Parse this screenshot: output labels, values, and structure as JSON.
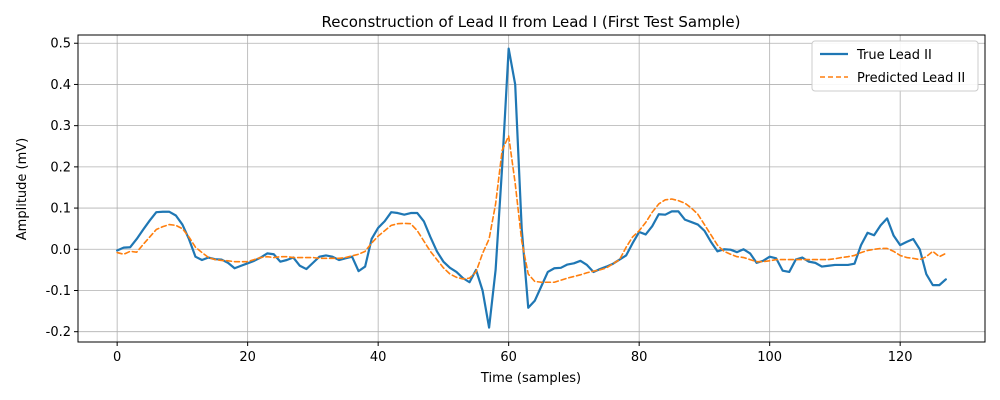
{
  "chart_data": {
    "type": "line",
    "title": "Reconstruction of Lead II from Lead I (First Test Sample)",
    "xlabel": "Time (samples)",
    "ylabel": "Amplitude (mV)",
    "xlim": [
      -6,
      133
    ],
    "ylim": [
      -0.225,
      0.52
    ],
    "xticks": [
      0,
      20,
      40,
      60,
      80,
      100,
      120
    ],
    "yticks": [
      -0.2,
      -0.1,
      0.0,
      0.1,
      0.2,
      0.3,
      0.4,
      0.5
    ],
    "grid": true,
    "legend_position": "top-right",
    "series": [
      {
        "name": "True Lead II",
        "color": "#1f77b4",
        "style": "solid",
        "values": [
          -0.003,
          0.004,
          0.005,
          0.025,
          0.048,
          0.07,
          0.09,
          0.091,
          0.091,
          0.082,
          0.06,
          0.025,
          -0.018,
          -0.026,
          -0.02,
          -0.024,
          -0.025,
          -0.033,
          -0.046,
          -0.04,
          -0.034,
          -0.028,
          -0.02,
          -0.01,
          -0.012,
          -0.03,
          -0.026,
          -0.02,
          -0.04,
          -0.048,
          -0.033,
          -0.018,
          -0.015,
          -0.018,
          -0.026,
          -0.022,
          -0.018,
          -0.053,
          -0.042,
          0.025,
          0.052,
          0.068,
          0.09,
          0.088,
          0.084,
          0.088,
          0.088,
          0.068,
          0.03,
          -0.005,
          -0.03,
          -0.045,
          -0.055,
          -0.07,
          -0.08,
          -0.05,
          -0.1,
          -0.19,
          -0.05,
          0.2,
          0.487,
          0.4,
          0.05,
          -0.142,
          -0.125,
          -0.09,
          -0.055,
          -0.046,
          -0.045,
          -0.037,
          -0.034,
          -0.028,
          -0.038,
          -0.055,
          -0.048,
          -0.042,
          -0.035,
          -0.025,
          -0.015,
          0.015,
          0.042,
          0.036,
          0.056,
          0.085,
          0.084,
          0.092,
          0.092,
          0.072,
          0.066,
          0.06,
          0.045,
          0.018,
          -0.005,
          0.0,
          -0.001,
          -0.007,
          0.0,
          -0.01,
          -0.033,
          -0.028,
          -0.018,
          -0.022,
          -0.052,
          -0.055,
          -0.025,
          -0.02,
          -0.03,
          -0.033,
          -0.042,
          -0.04,
          -0.038,
          -0.038,
          -0.038,
          -0.035,
          0.01,
          0.04,
          0.034,
          0.058,
          0.075,
          0.033,
          0.01,
          0.018,
          0.025,
          0.0,
          -0.06,
          -0.087,
          -0.087,
          -0.073
        ]
      },
      {
        "name": "Predicted Lead II",
        "color": "#ff7f0e",
        "style": "dashed",
        "values": [
          -0.008,
          -0.012,
          -0.005,
          -0.007,
          0.012,
          0.03,
          0.048,
          0.055,
          0.06,
          0.058,
          0.05,
          0.03,
          0.005,
          -0.008,
          -0.02,
          -0.025,
          -0.027,
          -0.028,
          -0.03,
          -0.03,
          -0.03,
          -0.025,
          -0.02,
          -0.018,
          -0.02,
          -0.018,
          -0.018,
          -0.02,
          -0.02,
          -0.02,
          -0.02,
          -0.022,
          -0.022,
          -0.022,
          -0.022,
          -0.02,
          -0.016,
          -0.012,
          -0.005,
          0.015,
          0.032,
          0.045,
          0.058,
          0.062,
          0.063,
          0.062,
          0.045,
          0.02,
          -0.005,
          -0.025,
          -0.045,
          -0.06,
          -0.068,
          -0.072,
          -0.07,
          -0.055,
          -0.01,
          0.025,
          0.11,
          0.24,
          0.275,
          0.16,
          0.02,
          -0.06,
          -0.078,
          -0.08,
          -0.08,
          -0.08,
          -0.075,
          -0.07,
          -0.066,
          -0.062,
          -0.057,
          -0.053,
          -0.05,
          -0.045,
          -0.035,
          -0.025,
          0.005,
          0.03,
          0.045,
          0.065,
          0.09,
          0.11,
          0.12,
          0.122,
          0.118,
          0.112,
          0.1,
          0.085,
          0.06,
          0.035,
          0.01,
          -0.005,
          -0.012,
          -0.018,
          -0.02,
          -0.025,
          -0.03,
          -0.03,
          -0.028,
          -0.025,
          -0.025,
          -0.025,
          -0.025,
          -0.025,
          -0.025,
          -0.025,
          -0.025,
          -0.025,
          -0.023,
          -0.02,
          -0.018,
          -0.015,
          -0.008,
          -0.003,
          0.0,
          0.002,
          0.002,
          -0.005,
          -0.015,
          -0.02,
          -0.022,
          -0.025,
          -0.018,
          -0.005,
          -0.018,
          -0.01
        ]
      }
    ]
  }
}
